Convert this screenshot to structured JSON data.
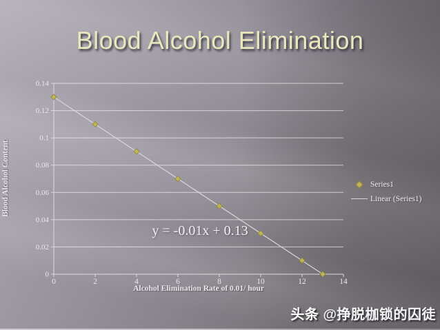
{
  "slide": {
    "title": "Blood Alcohol Elimination",
    "watermark": {
      "brand": "头条",
      "handle": "@挣脱枷锁的囚徒"
    }
  },
  "colors": {
    "title_text": "#ebe7bd",
    "chart_text": "#eae8ec",
    "marker_fill": "#c2b557",
    "marker_stroke": "#8f8638",
    "trendline": "#d8d6da",
    "gridline": "rgba(255,255,255,0.62)",
    "axis": "#dddbe0"
  },
  "chart_data": {
    "type": "scatter",
    "title": "",
    "xlabel": "Alcohol Elimination Rate of 0.01/ hour",
    "ylabel": "Blood Alcohol Content",
    "x": [
      0,
      2,
      4,
      6,
      8,
      10,
      12,
      13
    ],
    "y": [
      0.13,
      0.11,
      0.09,
      0.07,
      0.05,
      0.03,
      0.01,
      0
    ],
    "xlim": [
      0,
      14
    ],
    "ylim": [
      0,
      0.14
    ],
    "x_ticks": [
      0,
      2,
      4,
      6,
      8,
      10,
      12,
      14
    ],
    "x_tick_labels": [
      "0",
      "2",
      "4",
      "6",
      "8",
      "10",
      "12",
      "14"
    ],
    "y_ticks": [
      0,
      0.02,
      0.04,
      0.06,
      0.08,
      0.1,
      0.12,
      0.14
    ],
    "y_tick_labels": [
      "0",
      "0.02",
      "0.04",
      "0.06",
      "0.08",
      "0.1",
      "0.12",
      "0.14"
    ],
    "grid": "horizontal",
    "legend_position": "right",
    "legend": [
      "Series1",
      "Linear (Series1)"
    ],
    "trendline": {
      "slope": -0.01,
      "intercept": 0.13
    },
    "annotation": "y = -0.01x + 0.13"
  }
}
